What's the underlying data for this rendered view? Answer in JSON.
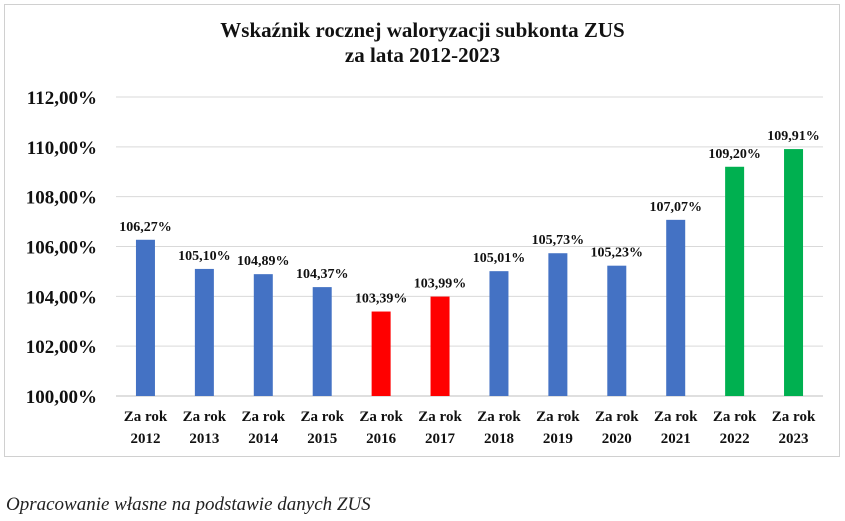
{
  "chart_data": {
    "type": "bar",
    "title_lines": [
      "Wskaźnik rocznej waloryzacji subkonta ZUS",
      "za lata 2012-2023"
    ],
    "categories": [
      [
        "Za rok",
        "2012"
      ],
      [
        "Za rok",
        "2013"
      ],
      [
        "Za rok",
        "2014"
      ],
      [
        "Za rok",
        "2015"
      ],
      [
        "Za rok",
        "2016"
      ],
      [
        "Za rok",
        "2017"
      ],
      [
        "Za rok",
        "2018"
      ],
      [
        "Za rok",
        "2019"
      ],
      [
        "Za rok",
        "2020"
      ],
      [
        "Za rok",
        "2021"
      ],
      [
        "Za rok",
        "2022"
      ],
      [
        "Za rok",
        "2023"
      ]
    ],
    "values": [
      106.27,
      105.1,
      104.89,
      104.37,
      103.39,
      103.99,
      105.01,
      105.73,
      105.23,
      107.07,
      109.2,
      109.91
    ],
    "value_labels": [
      "106,27%",
      "105,10%",
      "104,89%",
      "104,37%",
      "103,39%",
      "103,99%",
      "105,01%",
      "105,73%",
      "105,23%",
      "107,07%",
      "109,20%",
      "109,91%"
    ],
    "bar_colors": [
      "#4472c4",
      "#4472c4",
      "#4472c4",
      "#4472c4",
      "#ff0000",
      "#ff0000",
      "#4472c4",
      "#4472c4",
      "#4472c4",
      "#4472c4",
      "#00b050",
      "#00b050"
    ],
    "ylim": [
      100,
      112
    ],
    "yticks": [
      100,
      102,
      104,
      106,
      108,
      110,
      112
    ],
    "ytick_labels": [
      "100,00%",
      "102,00%",
      "104,00%",
      "106,00%",
      "108,00%",
      "110,00%",
      "112,00%"
    ],
    "grid": true,
    "legend": "none"
  },
  "caption": "Opracowanie własne na podstawie danych ZUS"
}
